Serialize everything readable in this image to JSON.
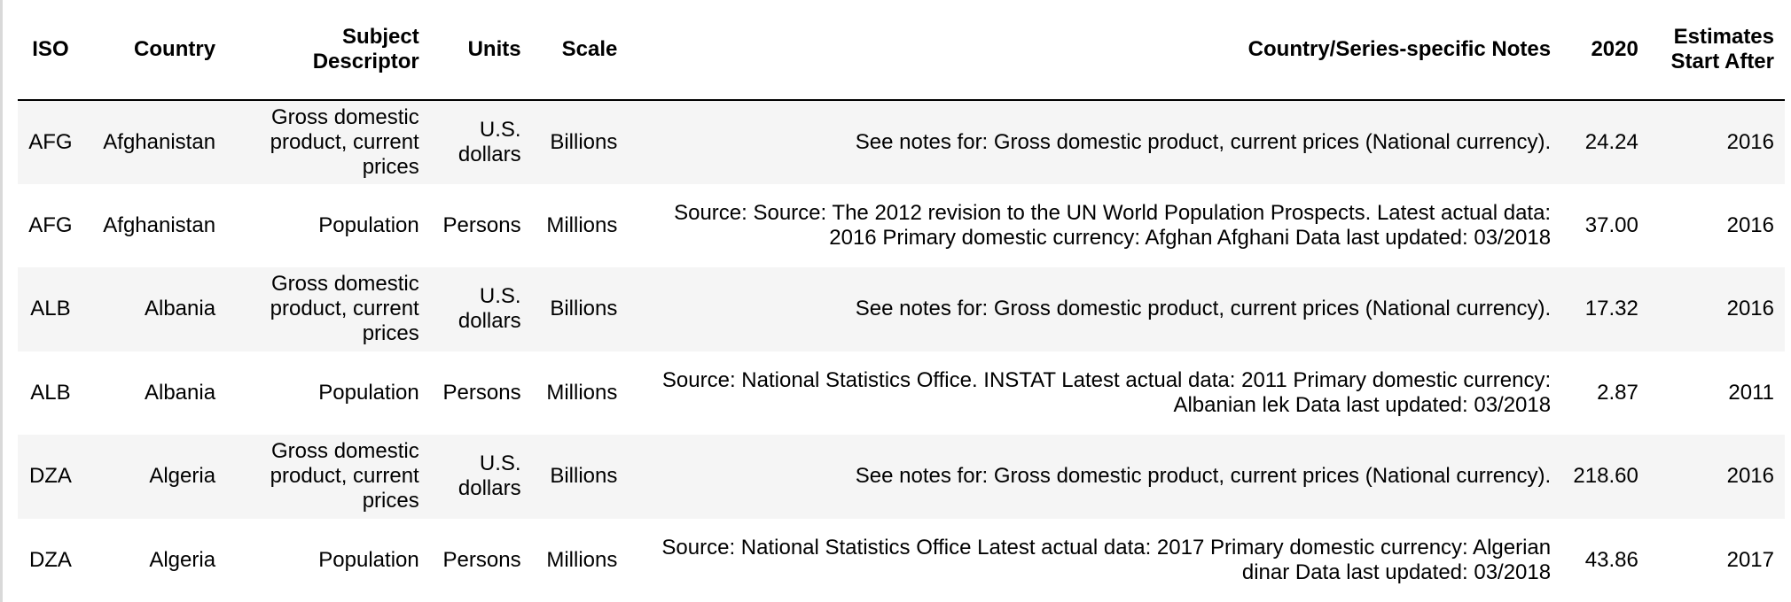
{
  "table": {
    "headers": {
      "iso": "ISO",
      "country": "Country",
      "subject": "Subject Descriptor",
      "units": "Units",
      "scale": "Scale",
      "notes": "Country/Series-specific Notes",
      "year": "2020",
      "estimates": "Estimates Start After"
    },
    "rows": [
      {
        "iso": "AFG",
        "country": "Afghanistan",
        "subject": "Gross domestic product, current prices",
        "units": "U.S. dollars",
        "scale": "Billions",
        "notes": "See notes for: Gross domestic product, current prices (National currency).",
        "year": "24.24",
        "estimates": "2016"
      },
      {
        "iso": "AFG",
        "country": "Afghanistan",
        "subject": "Population",
        "units": "Persons",
        "scale": "Millions",
        "notes": "Source: Source: The 2012 revision to the UN World Population Prospects. Latest actual data: 2016 Primary domestic currency: Afghan Afghani Data last updated: 03/2018",
        "year": "37.00",
        "estimates": "2016"
      },
      {
        "iso": "ALB",
        "country": "Albania",
        "subject": "Gross domestic product, current prices",
        "units": "U.S. dollars",
        "scale": "Billions",
        "notes": "See notes for: Gross domestic product, current prices (National currency).",
        "year": "17.32",
        "estimates": "2016"
      },
      {
        "iso": "ALB",
        "country": "Albania",
        "subject": "Population",
        "units": "Persons",
        "scale": "Millions",
        "notes": "Source: National Statistics Office. INSTAT Latest actual data: 2011 Primary domestic currency: Albanian lek Data last updated: 03/2018",
        "year": "2.87",
        "estimates": "2011"
      },
      {
        "iso": "DZA",
        "country": "Algeria",
        "subject": "Gross domestic product, current prices",
        "units": "U.S. dollars",
        "scale": "Billions",
        "notes": "See notes for: Gross domestic product, current prices (National currency).",
        "year": "218.60",
        "estimates": "2016"
      },
      {
        "iso": "DZA",
        "country": "Algeria",
        "subject": "Population",
        "units": "Persons",
        "scale": "Millions",
        "notes": "Source: National Statistics Office Latest actual data: 2017 Primary domestic currency: Algerian dinar Data last updated: 03/2018",
        "year": "43.86",
        "estimates": "2017"
      }
    ]
  }
}
